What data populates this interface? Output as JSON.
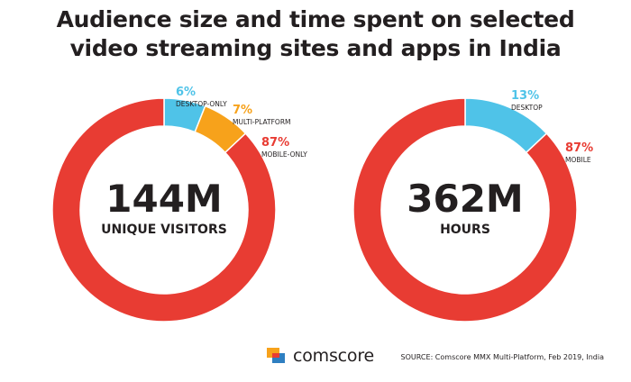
{
  "title_lines": [
    "Audience size and time spent on selected",
    "video streaming sites and apps in India"
  ],
  "colors": {
    "red": "#e83c33",
    "blue": "#4fc3e8",
    "orange": "#f7a21b",
    "dark": "#231f20",
    "logo_orange": "#f7a21b",
    "logo_blue": "#2f7fc1"
  },
  "chart_data": [
    {
      "type": "pie",
      "variant": "donut",
      "center_value": "144M",
      "center_label": "UNIQUE VISITORS",
      "slices": [
        {
          "label": "DESKTOP-ONLY",
          "percent_text": "6%",
          "value": 6,
          "color": "#4fc3e8"
        },
        {
          "label": "MULTI-PLATFORM",
          "percent_text": "7%",
          "value": 7,
          "color": "#f7a21b"
        },
        {
          "label": "MOBILE-ONLY",
          "percent_text": "87%",
          "value": 87,
          "color": "#e83c33"
        }
      ]
    },
    {
      "type": "pie",
      "variant": "donut",
      "center_value": "362M",
      "center_label": "HOURS",
      "slices": [
        {
          "label": "DESKTOP",
          "percent_text": "13%",
          "value": 13,
          "color": "#4fc3e8"
        },
        {
          "label": "MOBILE",
          "percent_text": "87%",
          "value": 87,
          "color": "#e83c33"
        }
      ]
    }
  ],
  "footer": {
    "brand": "comscore",
    "source": "SOURCE: Comscore MMX Multi-Platform, Feb 2019, India"
  }
}
